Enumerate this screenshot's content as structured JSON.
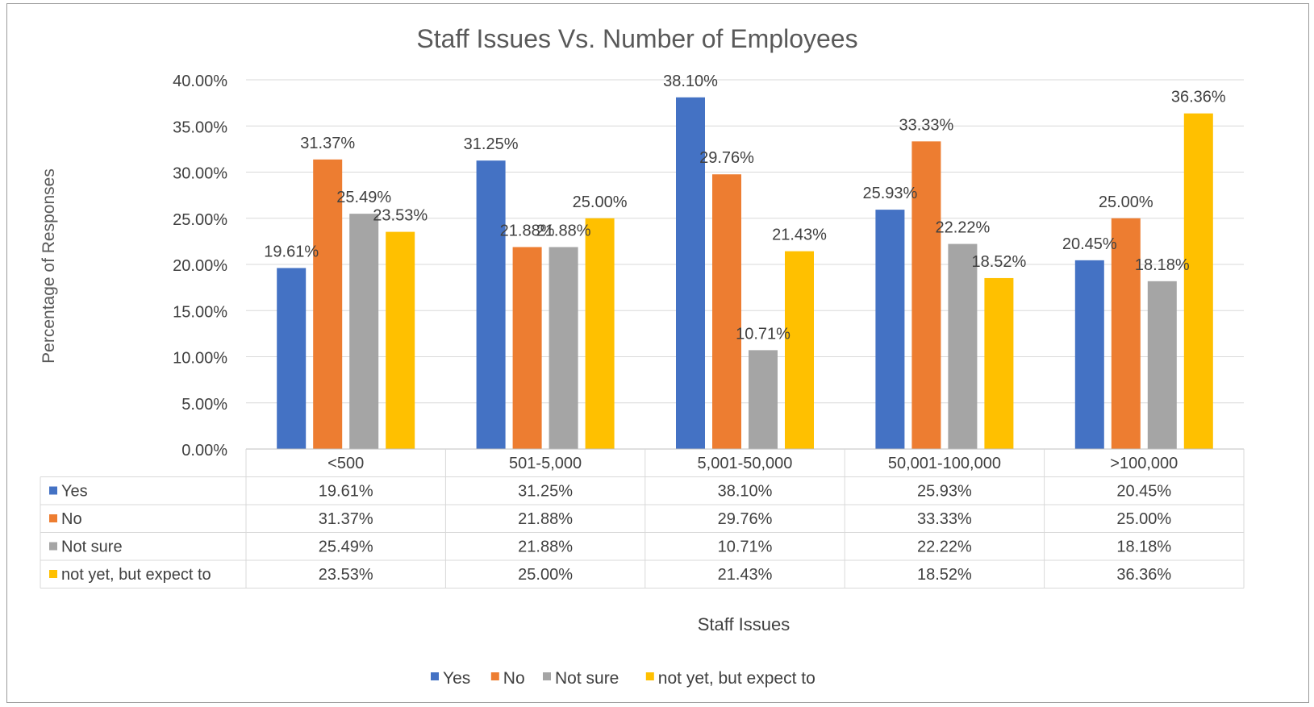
{
  "chart_data": {
    "type": "bar",
    "title": "Staff Issues Vs. Number of Employees",
    "xlabel": "Staff Issues",
    "ylabel": "Percentage of Responses",
    "ylim": [
      0,
      40
    ],
    "y_ticks": [
      "0.00%",
      "5.00%",
      "10.00%",
      "15.00%",
      "20.00%",
      "25.00%",
      "30.00%",
      "35.00%",
      "40.00%"
    ],
    "grid": true,
    "legend_position": "bottom",
    "categories": [
      "<500",
      "501-5,000",
      "5,001-50,000",
      "50,001-100,000",
      ">100,000"
    ],
    "series": [
      {
        "name": "Yes",
        "color": "#4472C4",
        "values": [
          19.61,
          31.25,
          38.1,
          25.93,
          20.45
        ],
        "labels": [
          "19.61%",
          "31.25%",
          "38.10%",
          "25.93%",
          "20.45%"
        ]
      },
      {
        "name": "No",
        "color": "#ED7D31",
        "values": [
          31.37,
          21.88,
          29.76,
          33.33,
          25.0
        ],
        "labels": [
          "31.37%",
          "21.88%",
          "29.76%",
          "33.33%",
          "25.00%"
        ]
      },
      {
        "name": "Not sure",
        "color": "#A5A5A5",
        "values": [
          25.49,
          21.88,
          10.71,
          22.22,
          18.18
        ],
        "labels": [
          "25.49%",
          "21.88%",
          "10.71%",
          "22.22%",
          "18.18%"
        ]
      },
      {
        "name": "not yet, but expect to",
        "color": "#FFC000",
        "values": [
          23.53,
          25.0,
          21.43,
          18.52,
          36.36
        ],
        "labels": [
          "23.53%",
          "25.00%",
          "21.43%",
          "18.52%",
          "36.36%"
        ]
      }
    ],
    "data_table": true
  }
}
